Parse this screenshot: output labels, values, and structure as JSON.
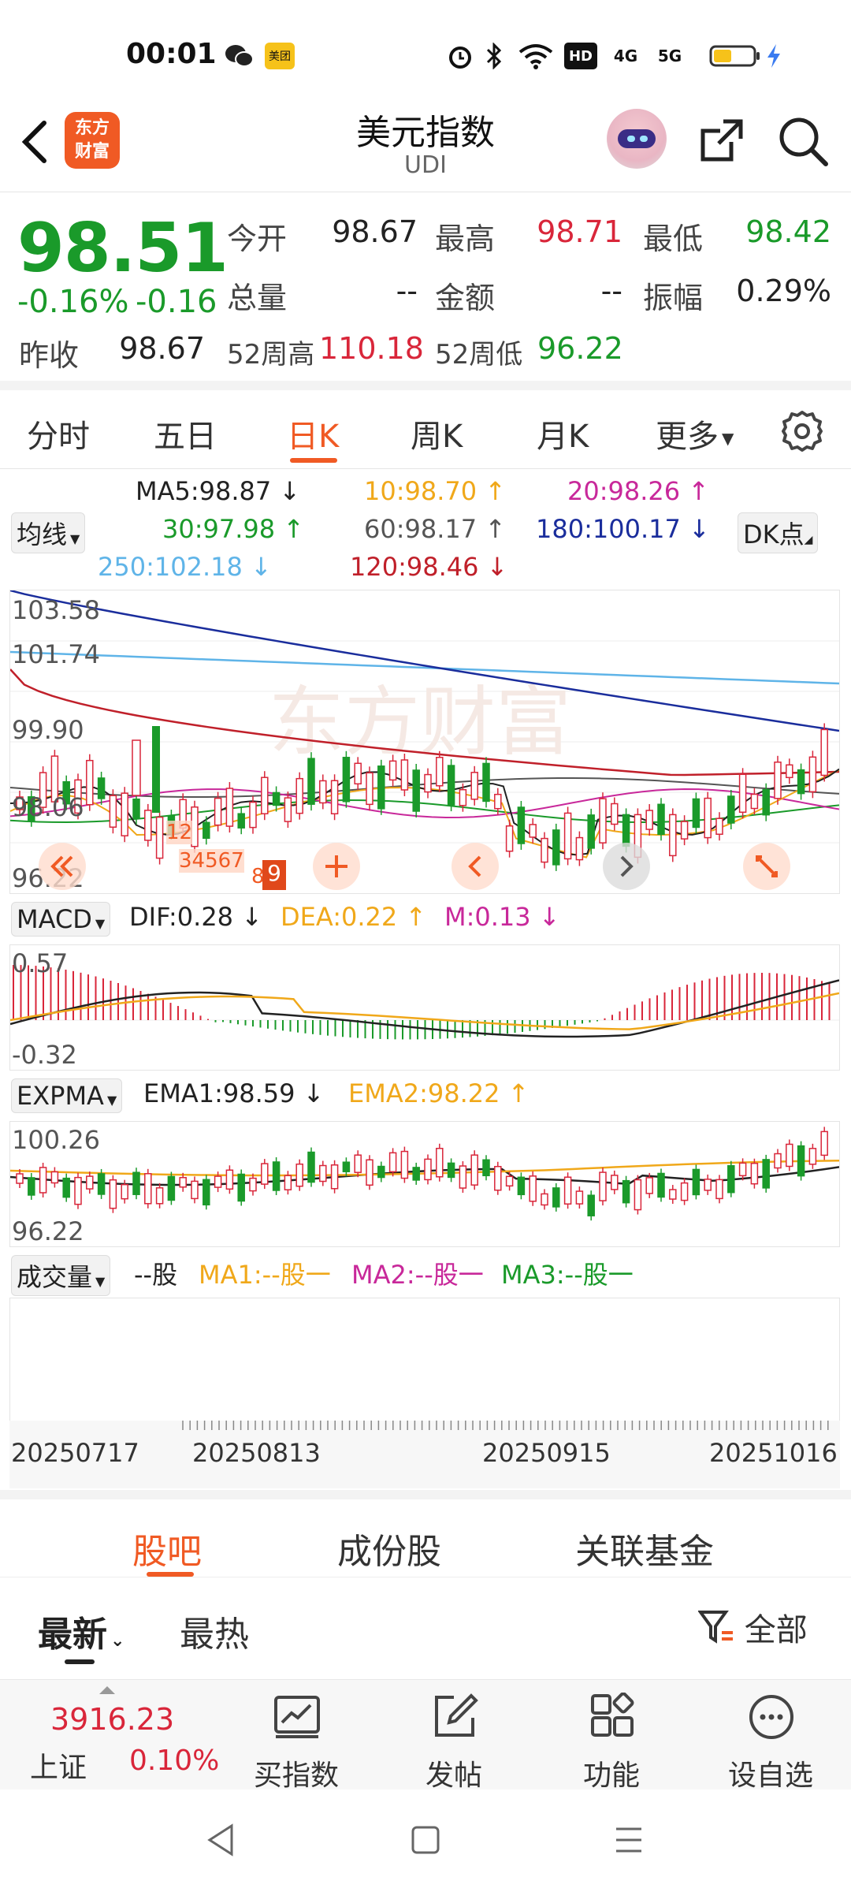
{
  "status": {
    "time": "00:01",
    "icons": [
      "wechat-icon",
      "meituan-icon",
      "alarm-icon",
      "bluetooth-icon",
      "wifi-icon",
      "hd-icon",
      "signal-4g-icon",
      "signal-5g-icon",
      "battery-icon",
      "charging-icon"
    ],
    "meituan_text": "美团",
    "hd_text": "HD",
    "g4_text": "4G",
    "g5_text": "5G"
  },
  "header": {
    "logo_text_1": "东方",
    "logo_text_2": "财富",
    "title": "美元指数",
    "subtitle": "UDI"
  },
  "quote": {
    "price": "98.51",
    "change_pct": "-0.16%",
    "change": "-0.16",
    "prev_close_label": "昨收",
    "prev_close": "98.67",
    "fields": [
      {
        "label": "今开",
        "value": "98.67",
        "tone": "neutral"
      },
      {
        "label": "最高",
        "value": "98.71",
        "tone": "up"
      },
      {
        "label": "最低",
        "value": "98.42",
        "tone": "down"
      },
      {
        "label": "总量",
        "value": "--",
        "tone": "neutral"
      },
      {
        "label": "金额",
        "value": "--",
        "tone": "neutral"
      },
      {
        "label": "振幅",
        "value": "0.29%",
        "tone": "neutral"
      }
    ],
    "w52_high_label": "52周高",
    "w52_high": "110.18",
    "w52_low_label": "52周低",
    "w52_low": "96.22"
  },
  "period_tabs": [
    "分时",
    "五日",
    "日K",
    "周K",
    "月K",
    "更多"
  ],
  "active_period": "日K",
  "ma_legend": {
    "selector": "均线",
    "dk": "DK点",
    "items": [
      {
        "text": "MA5:98.87",
        "arrow": "↓",
        "color": "#222222"
      },
      {
        "text": "10:98.70",
        "arrow": "↑",
        "color": "#f0a81a"
      },
      {
        "text": "20:98.26",
        "arrow": "↑",
        "color": "#c8289a"
      },
      {
        "text": "30:97.98",
        "arrow": "↑",
        "color": "#1a9a2a"
      },
      {
        "text": "60:98.17",
        "arrow": "↑",
        "color": "#555555"
      },
      {
        "text": "180:100.17",
        "arrow": "↓",
        "color": "#1a2d9c"
      },
      {
        "text": "250:102.18",
        "arrow": "↓",
        "color": "#5fb4e8"
      },
      {
        "text": "120:98.46",
        "arrow": "↓",
        "color": "#c0202a"
      }
    ]
  },
  "kline_axis": {
    "top": "103.58",
    "l2": "101.74",
    "l3": "99.90",
    "l4": "98.06",
    "bottom": "96.22"
  },
  "macd": {
    "selector": "MACD",
    "dif": "DIF:0.28",
    "dif_arrow": "↓",
    "dea": "DEA:0.22",
    "dea_arrow": "↑",
    "m": "M:0.13",
    "m_arrow": "↓",
    "axis_top": "0.57",
    "axis_bottom": "-0.32"
  },
  "expma": {
    "selector": "EXPMA",
    "ema1": "EMA1:98.59",
    "ema1_arrow": "↓",
    "ema2": "EMA2:98.22",
    "ema2_arrow": "↑",
    "axis_top": "100.26",
    "axis_bottom": "96.22"
  },
  "volume": {
    "selector": "成交量",
    "unit": "--股",
    "ma1": "MA1:--股一",
    "ma2": "MA2:--股一",
    "ma3": "MA3:--股一"
  },
  "dates": [
    "20250717",
    "20250813",
    "20250915",
    "20251016"
  ],
  "sub_tabs": [
    "股吧",
    "成份股",
    "关联基金"
  ],
  "active_sub_tab": "股吧",
  "sort": {
    "latest": "最新",
    "hot": "最热",
    "filter": "全部"
  },
  "bottom_bar": {
    "index_value": "3916.23",
    "index_name": "上证",
    "index_change": "0.10%",
    "items": [
      "买指数",
      "发帖",
      "功能",
      "设自选"
    ]
  },
  "colors": {
    "accent": "#f05a24",
    "up": "#d9263a",
    "down": "#1a9a2a"
  }
}
